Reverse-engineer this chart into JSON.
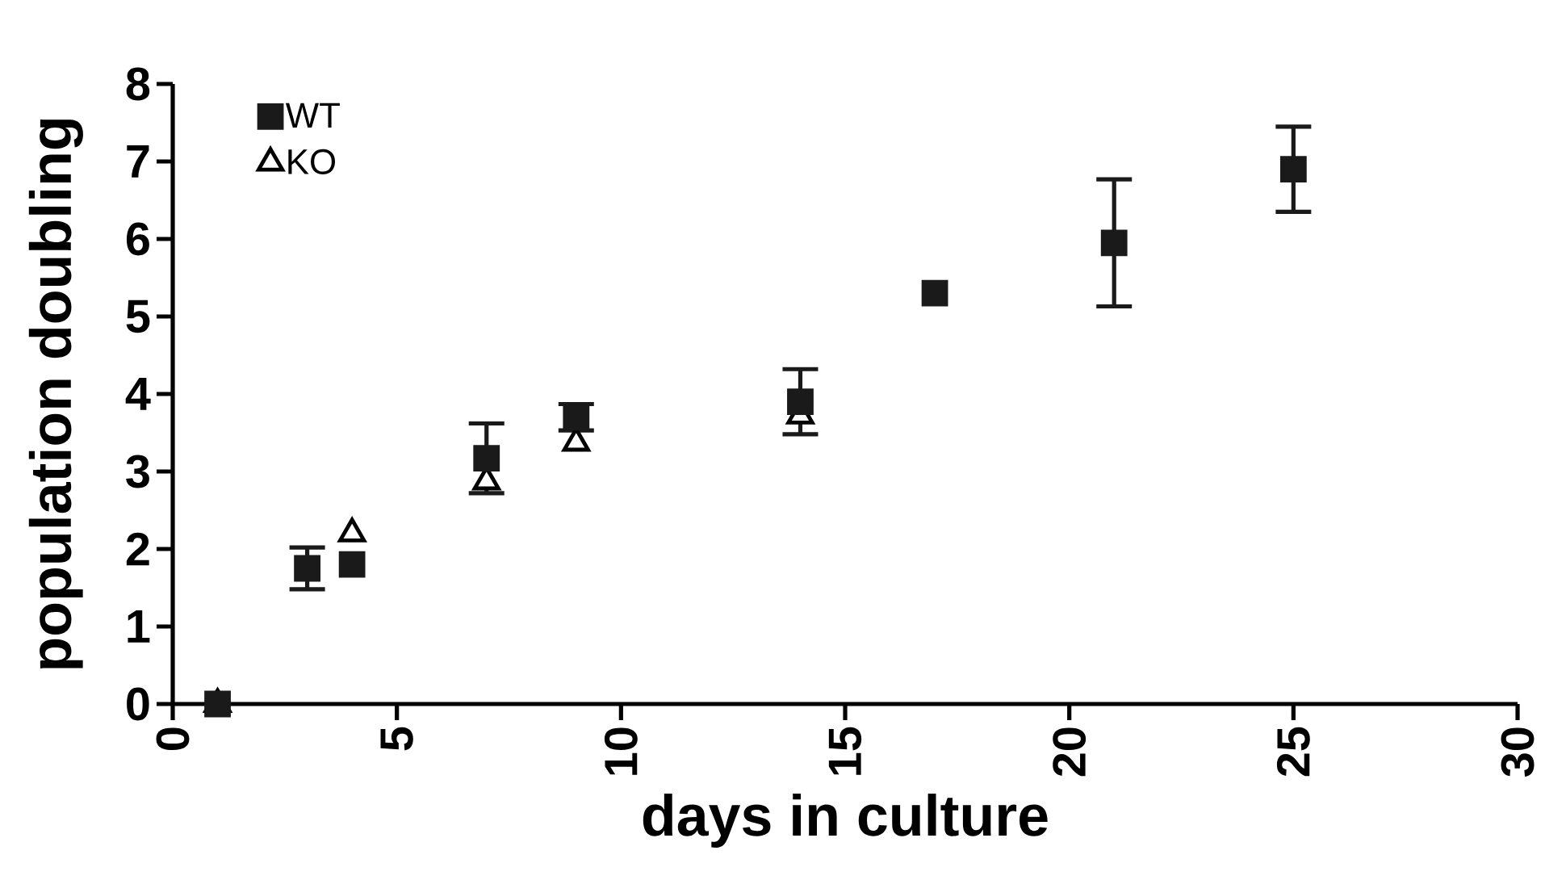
{
  "chart_data": {
    "type": "scatter",
    "xlabel": "days in culture",
    "ylabel": "population doubling",
    "xlim": [
      0,
      30
    ],
    "xticks": [
      0,
      5,
      10,
      15,
      20,
      25,
      30
    ],
    "ylim": [
      0,
      8
    ],
    "yticks": [
      0,
      1,
      2,
      3,
      4,
      5,
      6,
      7,
      8
    ],
    "grid": false,
    "legend": "top left",
    "series": [
      {
        "name": "WT",
        "color": "#1a1a1a",
        "marker": "square",
        "x": [
          1,
          3,
          4,
          7,
          9,
          14,
          17,
          21,
          25
        ],
        "values": [
          0,
          1.75,
          1.8,
          3.17,
          3.7,
          3.9,
          5.3,
          5.95,
          6.9
        ],
        "errors": [
          null,
          0.27,
          null,
          0.45,
          0.17,
          0.42,
          null,
          0.82,
          0.55
        ]
      },
      {
        "name": "KO",
        "color": "#000000",
        "marker": "triangle",
        "x": [
          1,
          4,
          7,
          9,
          14
        ],
        "values": [
          0,
          2.2,
          2.87,
          3.37,
          3.72
        ]
      }
    ]
  }
}
